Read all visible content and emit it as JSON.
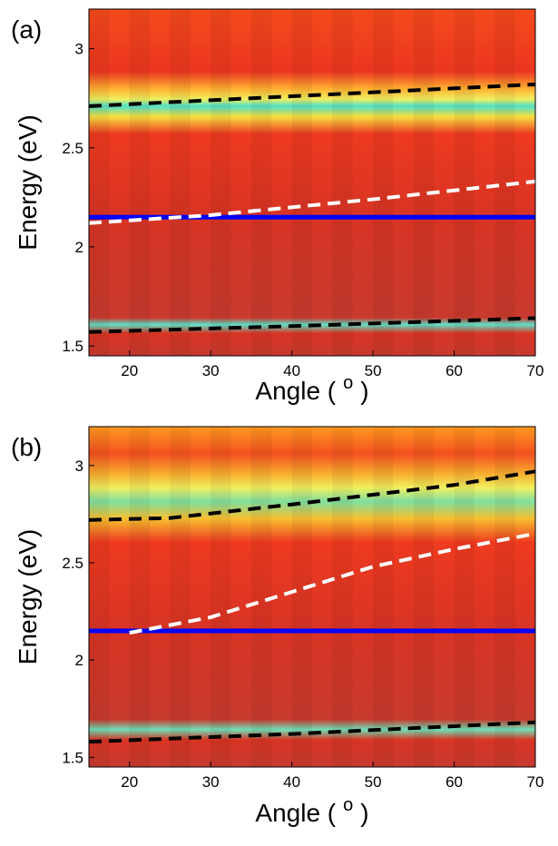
{
  "chart_data": [
    {
      "type": "line",
      "panel_label": "(a)",
      "xlabel": [
        "Angle (",
        "o",
        ")"
      ],
      "ylabel": "Energy (eV)",
      "xlim": [
        15,
        70
      ],
      "ylim": [
        1.45,
        3.2
      ],
      "xticks": [
        20,
        30,
        40,
        50,
        60,
        70
      ],
      "yticks": [
        1.5,
        2,
        2.5,
        3
      ],
      "series": [
        {
          "color": "#000000",
          "dash": true,
          "x": [
            15,
            30,
            50,
            70
          ],
          "values": [
            2.71,
            2.74,
            2.78,
            2.82
          ]
        },
        {
          "color": "#0000ff",
          "dash": false,
          "x": [
            15,
            70
          ],
          "values": [
            2.15,
            2.15
          ]
        },
        {
          "color": "#ffffff",
          "dash": true,
          "x": [
            15,
            30,
            50,
            70
          ],
          "values": [
            2.12,
            2.16,
            2.24,
            2.33
          ]
        },
        {
          "color": "#000000",
          "dash": true,
          "x": [
            15,
            40,
            70
          ],
          "values": [
            1.57,
            1.6,
            1.64
          ]
        }
      ]
    },
    {
      "type": "line",
      "panel_label": "(b)",
      "xlabel": [
        "Angle (",
        "o",
        ")"
      ],
      "ylabel": "Energy (eV)",
      "xlim": [
        15,
        70
      ],
      "ylim": [
        1.45,
        3.2
      ],
      "xticks": [
        20,
        30,
        40,
        50,
        60,
        70
      ],
      "yticks": [
        1.5,
        2,
        2.5,
        3
      ],
      "series": [
        {
          "color": "#000000",
          "dash": true,
          "x": [
            15,
            25,
            40,
            50,
            60,
            70
          ],
          "values": [
            2.72,
            2.73,
            2.8,
            2.85,
            2.9,
            2.97
          ]
        },
        {
          "color": "#0000ff",
          "dash": false,
          "x": [
            15,
            70
          ],
          "values": [
            2.15,
            2.15
          ]
        },
        {
          "color": "#ffffff",
          "dash": true,
          "x": [
            20,
            30,
            40,
            50,
            60,
            70
          ],
          "values": [
            2.14,
            2.22,
            2.35,
            2.48,
            2.57,
            2.65
          ]
        },
        {
          "color": "#000000",
          "dash": true,
          "x": [
            15,
            40,
            70
          ],
          "values": [
            1.58,
            1.62,
            1.68
          ]
        }
      ]
    }
  ]
}
